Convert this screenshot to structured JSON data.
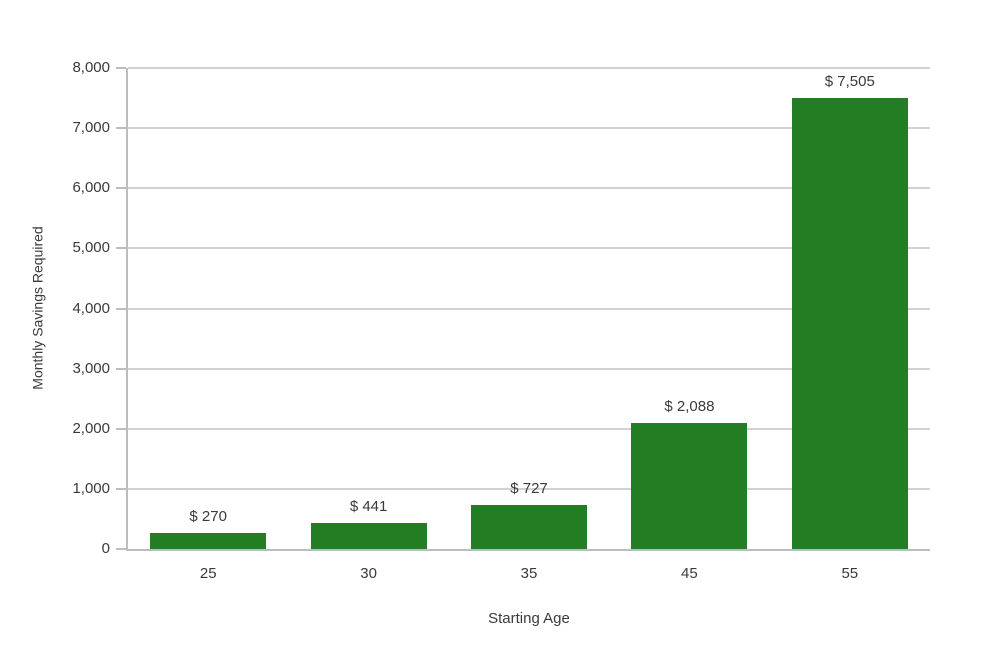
{
  "chart_data": {
    "type": "bar",
    "title": "",
    "xlabel": "Starting Age",
    "ylabel": "Monthly Savings Required",
    "categories": [
      "25",
      "30",
      "35",
      "45",
      "55"
    ],
    "values": [
      270,
      441,
      727,
      2088,
      7505
    ],
    "value_labels": [
      "$ 270",
      "$ 441",
      "$ 727",
      "$ 2,088",
      "$ 7,505"
    ],
    "ylim": [
      0,
      8000
    ],
    "ytick_interval": 1000,
    "ytick_values": [
      0,
      1000,
      2000,
      3000,
      4000,
      5000,
      6000,
      7000,
      8000
    ],
    "ytick_labels": [
      "0",
      "1,000",
      "2,000",
      "3,000",
      "4,000",
      "5,000",
      "6,000",
      "7,000",
      "8,000"
    ],
    "grid": true,
    "legend": false,
    "colors": {
      "bar": "#237d22",
      "grid": "#d2d2d2",
      "axis": "#bdbdbd",
      "text": "#3a3a3a"
    }
  }
}
